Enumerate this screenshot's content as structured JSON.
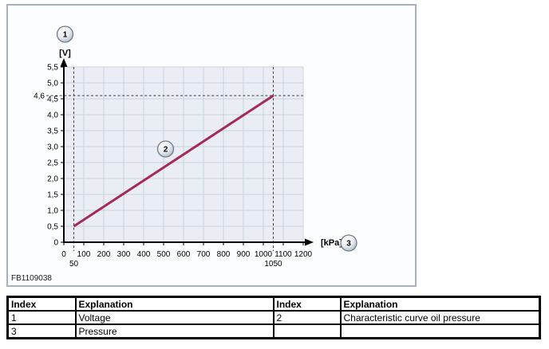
{
  "figure_panel": {
    "code": "FB1109038",
    "border_color": "#a7b1c2",
    "background": "#fcfdff"
  },
  "chart_data": {
    "type": "line",
    "title": "",
    "xlabel": "[kPa]",
    "ylabel": "[V]",
    "xlim": [
      0,
      1200
    ],
    "ylim": [
      0,
      5.5
    ],
    "x_ticks": [
      0,
      100,
      200,
      300,
      400,
      500,
      600,
      700,
      800,
      900,
      1000,
      1100,
      1200
    ],
    "x_tick_labels": [
      "0",
      "100",
      "200",
      "300",
      "400",
      "500",
      "600",
      "700",
      "800",
      "900",
      "1000",
      "1100",
      "1200"
    ],
    "y_ticks": [
      0,
      0.5,
      1.0,
      1.5,
      2.0,
      2.5,
      3.0,
      3.5,
      4.0,
      4.5,
      5.0,
      5.5
    ],
    "y_tick_labels": [
      "0",
      "0,5",
      "1,0",
      "1,5",
      "2,0",
      "2,5",
      "3,0",
      "3,5",
      "4,0",
      "4,5",
      "5,0",
      "5,5"
    ],
    "grid": true,
    "legend_position": "none",
    "series": [
      {
        "name": "Characteristic curve oil pressure",
        "color": "#a42a5a",
        "points": [
          [
            50,
            0.5
          ],
          [
            1050,
            4.6
          ]
        ]
      }
    ],
    "reference_dashed": {
      "x_values": [
        50,
        1050
      ],
      "y_values": [
        4.6
      ]
    },
    "x_annotations": [
      {
        "value": 50,
        "label": "50"
      },
      {
        "value": 1050,
        "label": "1050"
      }
    ],
    "y_annotations": [
      {
        "value": 4.6,
        "label": "4,6"
      }
    ],
    "callouts": [
      {
        "label": "1",
        "target": "voltage-axis"
      },
      {
        "label": "2",
        "target": "curve"
      },
      {
        "label": "3",
        "target": "pressure-axis"
      }
    ],
    "colors": {
      "plot_bg": "#eaeef4",
      "grid": "#c7d2e0",
      "axis": "#000000",
      "dashed": "#3a3f46"
    }
  },
  "table": {
    "headers": [
      "Index",
      "Explanation",
      "Index",
      "Explanation"
    ],
    "rows": [
      [
        "1",
        "Voltage",
        "2",
        "Characteristic curve oil pressure"
      ],
      [
        "3",
        "Pressure",
        "",
        ""
      ]
    ]
  }
}
